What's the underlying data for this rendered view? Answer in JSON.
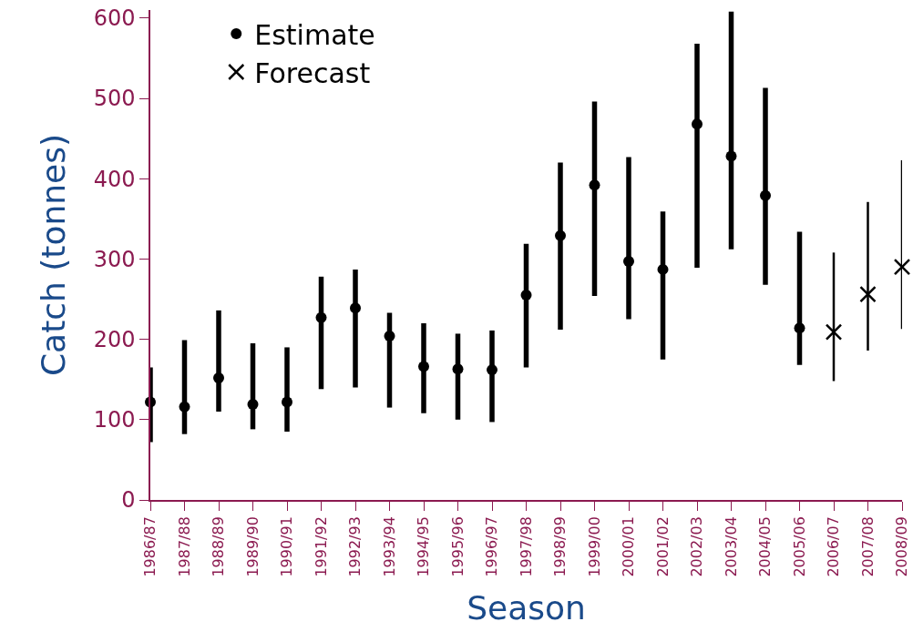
{
  "chart_data": {
    "type": "scatter",
    "xlabel": "Season",
    "ylabel": "Catch (tonnes)",
    "categories": [
      "1986/87",
      "1987/88",
      "1988/89",
      "1989/90",
      "1990/91",
      "1991/92",
      "1992/93",
      "1993/94",
      "1994/95",
      "1995/96",
      "1996/97",
      "1997/98",
      "1998/99",
      "1999/00",
      "2000/01",
      "2001/02",
      "2002/03",
      "2003/04",
      "2004/05",
      "2005/06",
      "2006/07",
      "2007/08",
      "2008/09"
    ],
    "series": [
      {
        "name": "Estimate",
        "color": "#000000",
        "marker": "circle",
        "values": [
          122,
          116,
          152,
          119,
          122,
          227,
          239,
          204,
          166,
          163,
          162,
          255,
          329,
          392,
          297,
          287,
          468,
          428,
          379,
          214,
          null,
          null,
          null
        ],
        "errors": [
          [
            72,
            165
          ],
          [
            82,
            199
          ],
          [
            110,
            236
          ],
          [
            88,
            195
          ],
          [
            85,
            190
          ],
          [
            138,
            278
          ],
          [
            140,
            287
          ],
          [
            115,
            233
          ],
          [
            108,
            220
          ],
          [
            100,
            207
          ],
          [
            97,
            211
          ],
          [
            165,
            319
          ],
          [
            212,
            420
          ],
          [
            254,
            496
          ],
          [
            225,
            427
          ],
          [
            175,
            359
          ],
          [
            289,
            568
          ],
          [
            312,
            608
          ],
          [
            268,
            513
          ],
          [
            168,
            334
          ],
          null,
          null,
          null
        ]
      },
      {
        "name": "Forecast",
        "color": "#000000",
        "marker": "cross",
        "values": [
          null,
          null,
          null,
          null,
          null,
          null,
          null,
          null,
          null,
          null,
          null,
          null,
          null,
          null,
          null,
          null,
          null,
          null,
          null,
          null,
          209,
          256,
          290
        ],
        "errors": [
          null,
          null,
          null,
          null,
          null,
          null,
          null,
          null,
          null,
          null,
          null,
          null,
          null,
          null,
          null,
          null,
          null,
          null,
          null,
          null,
          [
            148,
            308
          ],
          [
            186,
            371
          ],
          [
            213,
            423
          ]
        ]
      }
    ],
    "ylim": [
      0,
      610
    ],
    "yticks": [
      0,
      100,
      200,
      300,
      400,
      500,
      600
    ],
    "grid": false,
    "legend": "top left"
  }
}
